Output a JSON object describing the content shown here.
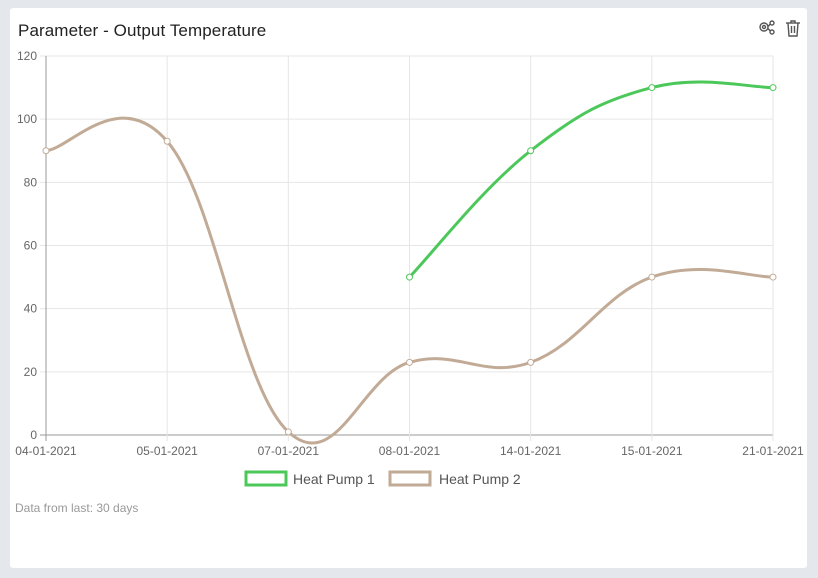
{
  "card": {
    "title": "Parameter - Output Temperature",
    "footer": "Data from last: 30 days",
    "tools": [
      {
        "icon": "gears-share-icon"
      },
      {
        "icon": "trash-icon"
      }
    ]
  },
  "colors": {
    "heat_pump_1": "#4cc85a",
    "heat_pump_2": "#c2ab96",
    "grid": "#e6e6e6",
    "axis": "#999999"
  },
  "chart_data": {
    "type": "line",
    "title": "",
    "xlabel": "",
    "ylabel": "",
    "categories": [
      "04-01-2021",
      "05-01-2021",
      "07-01-2021",
      "08-01-2021",
      "14-01-2021",
      "15-01-2021",
      "21-01-2021"
    ],
    "ylim": [
      0,
      120
    ],
    "yticks": [
      0,
      20,
      40,
      60,
      80,
      100,
      120
    ],
    "grid": true,
    "legend": "bottom",
    "series": [
      {
        "name": "Heat Pump 1",
        "values": [
          null,
          null,
          null,
          50,
          90,
          110,
          110
        ]
      },
      {
        "name": "Heat Pump 2",
        "values": [
          90,
          93,
          1,
          23,
          23,
          50,
          50
        ]
      }
    ]
  }
}
